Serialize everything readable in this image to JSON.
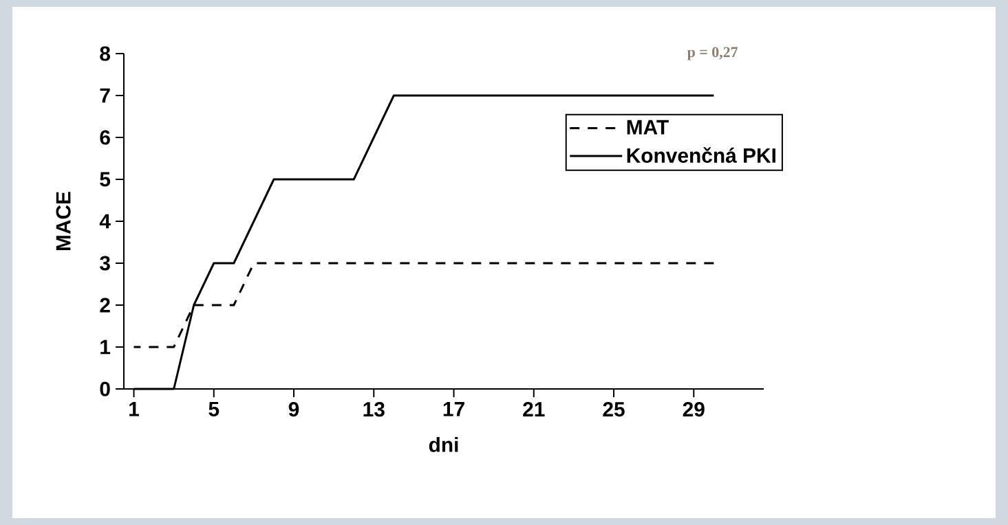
{
  "chart_data": {
    "type": "line",
    "xlabel": "dni",
    "ylabel": "MACE",
    "x": [
      1,
      2,
      3,
      4,
      5,
      6,
      7,
      8,
      9,
      10,
      11,
      12,
      13,
      14,
      15,
      16,
      17,
      18,
      19,
      20,
      21,
      22,
      23,
      24,
      25,
      26,
      27,
      28,
      29,
      30
    ],
    "series": [
      {
        "name": "MAT",
        "color": "#000000",
        "line_style": "dashed",
        "values": [
          1,
          1,
          1,
          2,
          2,
          2,
          3,
          3,
          3,
          3,
          3,
          3,
          3,
          3,
          3,
          3,
          3,
          3,
          3,
          3,
          3,
          3,
          3,
          3,
          3,
          3,
          3,
          3,
          3,
          3
        ]
      },
      {
        "name": "Konvenčná PKI",
        "color": "#000000",
        "line_style": "solid",
        "values": [
          0,
          0,
          0,
          2,
          3,
          3,
          4,
          5,
          5,
          5,
          5,
          5,
          6,
          7,
          7,
          7,
          7,
          7,
          7,
          7,
          7,
          7,
          7,
          7,
          7,
          7,
          7,
          7,
          7,
          7
        ]
      }
    ],
    "xlim": [
      0.5,
      32.5
    ],
    "xticks": [
      1,
      5,
      9,
      13,
      17,
      21,
      25,
      29
    ],
    "ylim": [
      0,
      8
    ],
    "yticks": [
      0,
      1,
      2,
      3,
      4,
      5,
      6,
      7,
      8
    ],
    "grid": false,
    "legend": "right",
    "marker": "none",
    "annotations": [
      "p = 0,27"
    ]
  }
}
